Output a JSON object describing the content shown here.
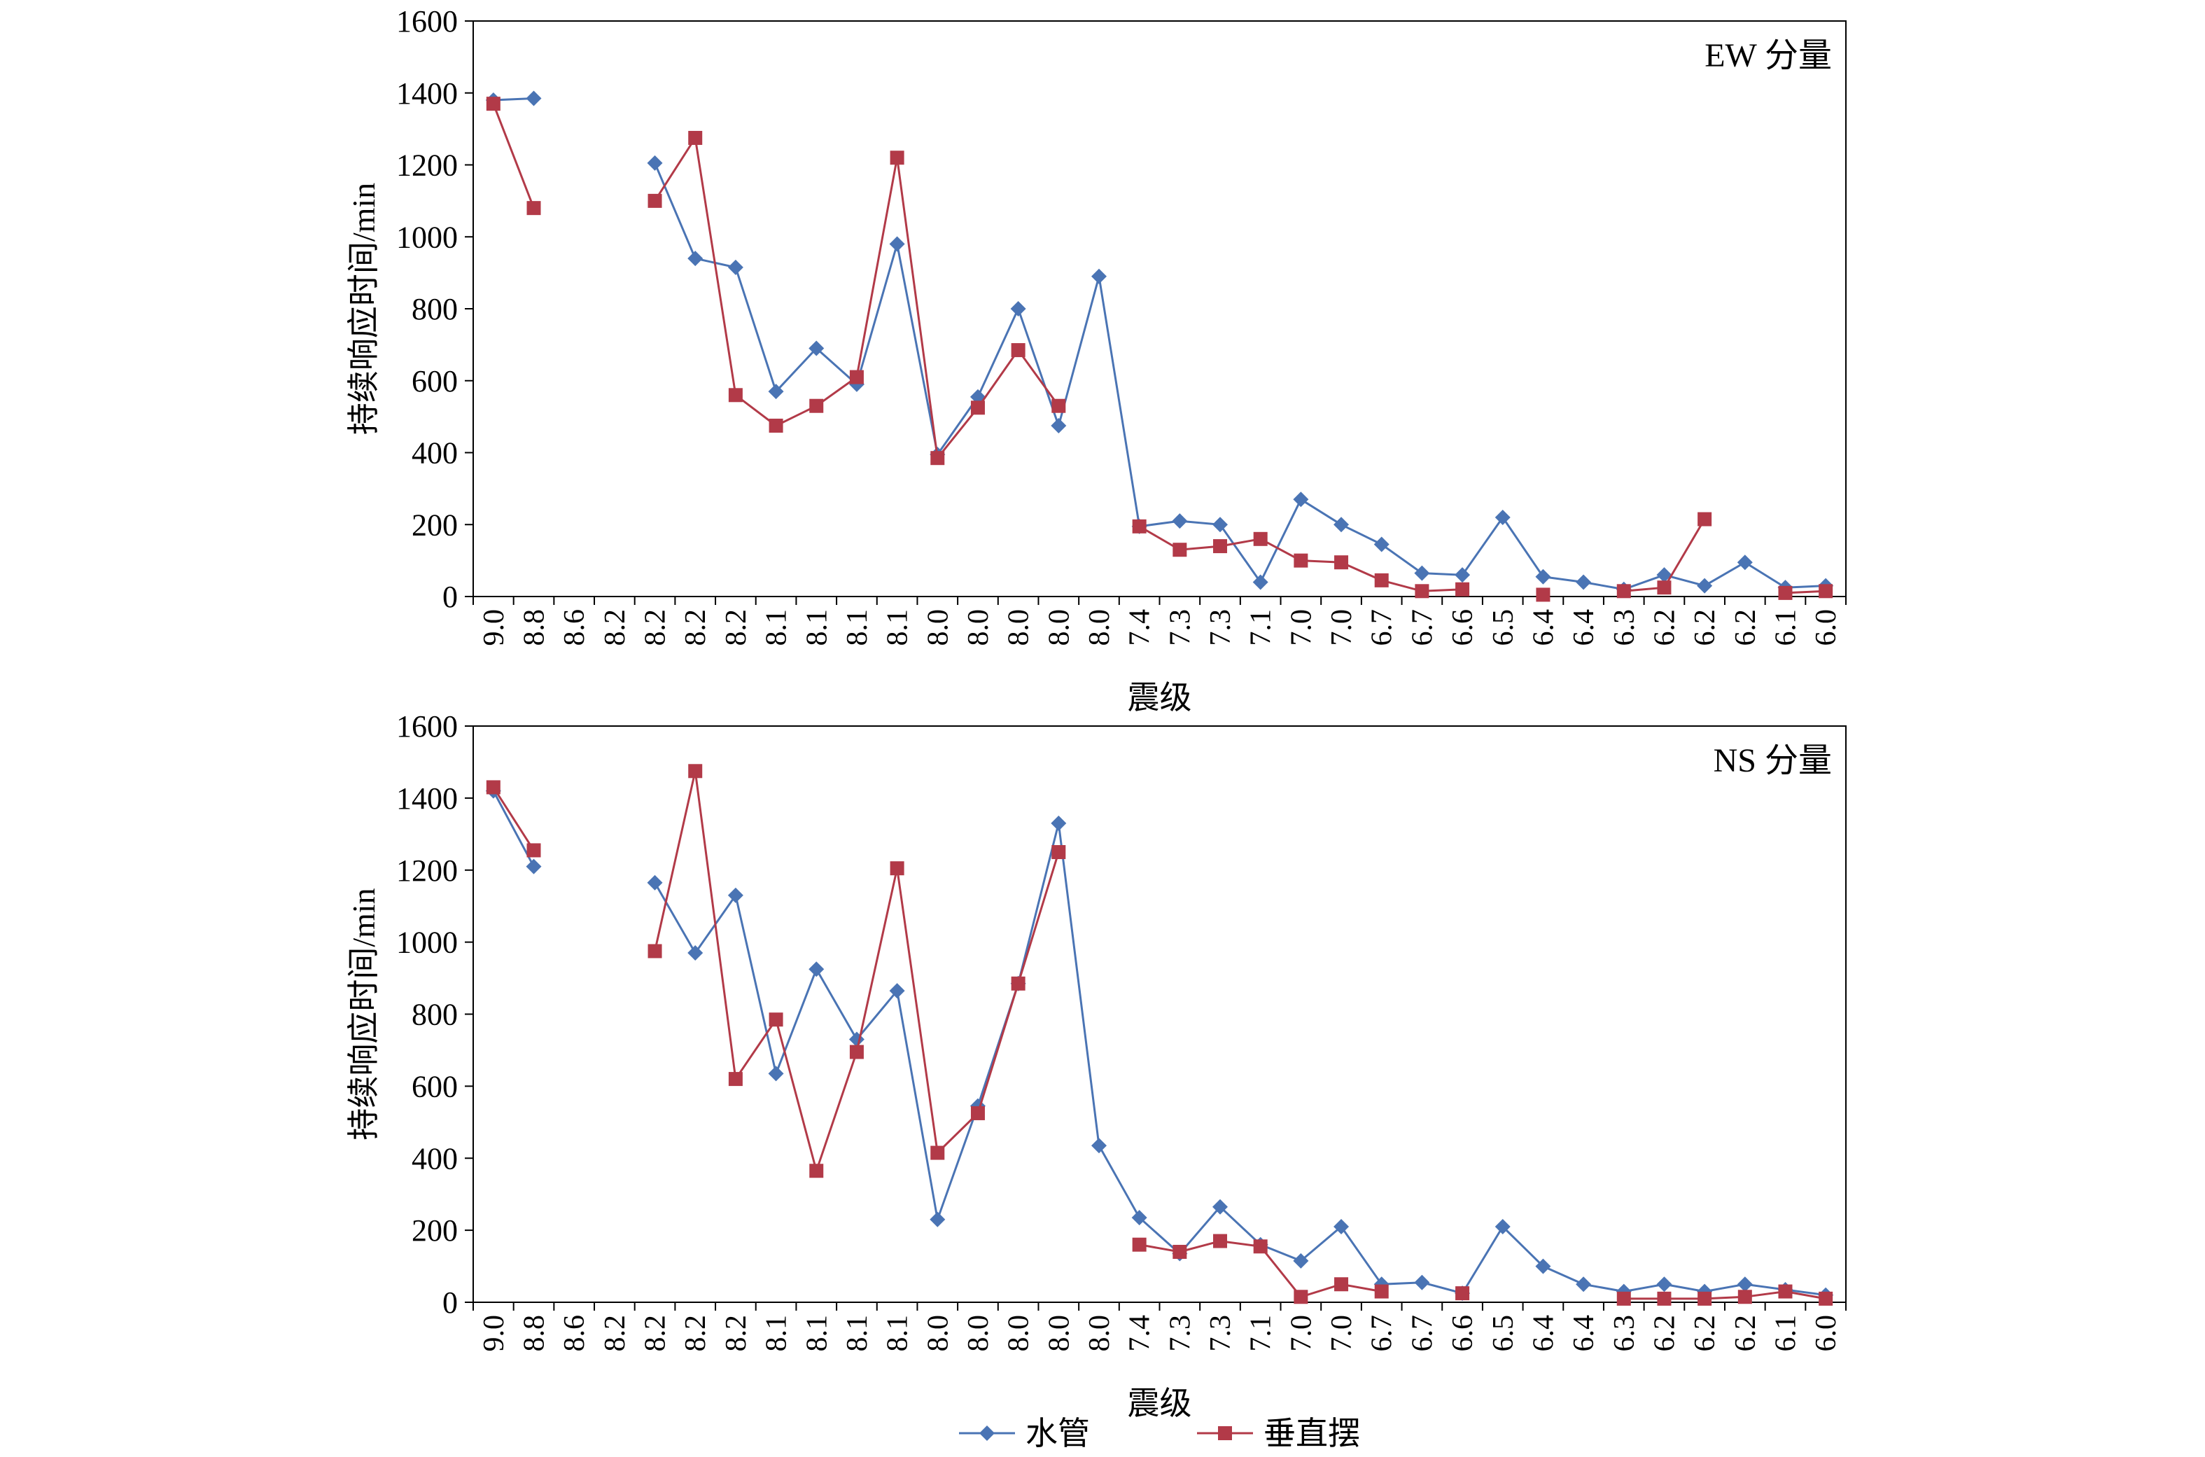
{
  "chart_data": [
    {
      "type": "line",
      "title": "",
      "annotation": "EW 分量",
      "xlabel": "震级",
      "ylabel": "持续响应时间/min",
      "ylim": [
        0,
        1600
      ],
      "yticks": [
        0,
        200,
        400,
        600,
        800,
        1000,
        1200,
        1400,
        1600
      ],
      "categories": [
        "9.0",
        "8.8",
        "8.6",
        "8.2",
        "8.2",
        "8.2",
        "8.2",
        "8.1",
        "8.1",
        "8.1",
        "8.1",
        "8.0",
        "8.0",
        "8.0",
        "8.0",
        "8.0",
        "7.4",
        "7.3",
        "7.3",
        "7.1",
        "7.0",
        "7.0",
        "6.7",
        "6.7",
        "6.6",
        "6.5",
        "6.4",
        "6.4",
        "6.3",
        "6.2",
        "6.2",
        "6.2",
        "6.1",
        "6.0"
      ],
      "series": [
        {
          "name": "水管",
          "color": "#4a74b4",
          "marker": "diamond",
          "values": [
            1380,
            1385,
            null,
            null,
            1205,
            940,
            915,
            570,
            690,
            590,
            980,
            395,
            555,
            800,
            475,
            890,
            195,
            210,
            200,
            40,
            270,
            200,
            145,
            65,
            60,
            220,
            55,
            40,
            20,
            60,
            30,
            95,
            25,
            30
          ]
        },
        {
          "name": "垂直摆",
          "color": "#b23a48",
          "marker": "square",
          "values": [
            1370,
            1080,
            null,
            null,
            1100,
            1275,
            560,
            475,
            530,
            610,
            1220,
            385,
            525,
            685,
            530,
            null,
            195,
            130,
            140,
            160,
            100,
            95,
            45,
            15,
            20,
            null,
            5,
            null,
            15,
            25,
            215,
            null,
            10,
            15
          ]
        }
      ]
    },
    {
      "type": "line",
      "title": "",
      "annotation": "NS 分量",
      "xlabel": "震级",
      "ylabel": "持续响应时间/min",
      "ylim": [
        0,
        1600
      ],
      "yticks": [
        0,
        200,
        400,
        600,
        800,
        1000,
        1200,
        1400,
        1600
      ],
      "categories": [
        "9.0",
        "8.8",
        "8.6",
        "8.2",
        "8.2",
        "8.2",
        "8.2",
        "8.1",
        "8.1",
        "8.1",
        "8.1",
        "8.0",
        "8.0",
        "8.0",
        "8.0",
        "8.0",
        "7.4",
        "7.3",
        "7.3",
        "7.1",
        "7.0",
        "7.0",
        "6.7",
        "6.7",
        "6.6",
        "6.5",
        "6.4",
        "6.4",
        "6.3",
        "6.2",
        "6.2",
        "6.2",
        "6.1",
        "6.0"
      ],
      "series": [
        {
          "name": "水管",
          "color": "#4a74b4",
          "marker": "diamond",
          "values": [
            1420,
            1210,
            null,
            null,
            1165,
            970,
            1130,
            635,
            925,
            730,
            865,
            230,
            545,
            885,
            1330,
            435,
            235,
            135,
            265,
            160,
            115,
            210,
            50,
            55,
            25,
            210,
            100,
            50,
            30,
            50,
            30,
            50,
            35,
            20
          ]
        },
        {
          "name": "垂直摆",
          "color": "#b23a48",
          "marker": "square",
          "values": [
            1430,
            1255,
            null,
            null,
            975,
            1475,
            620,
            785,
            365,
            695,
            1205,
            415,
            525,
            885,
            1250,
            null,
            160,
            140,
            170,
            155,
            15,
            50,
            30,
            null,
            25,
            null,
            null,
            null,
            10,
            10,
            10,
            15,
            30,
            10
          ]
        }
      ]
    }
  ]
}
